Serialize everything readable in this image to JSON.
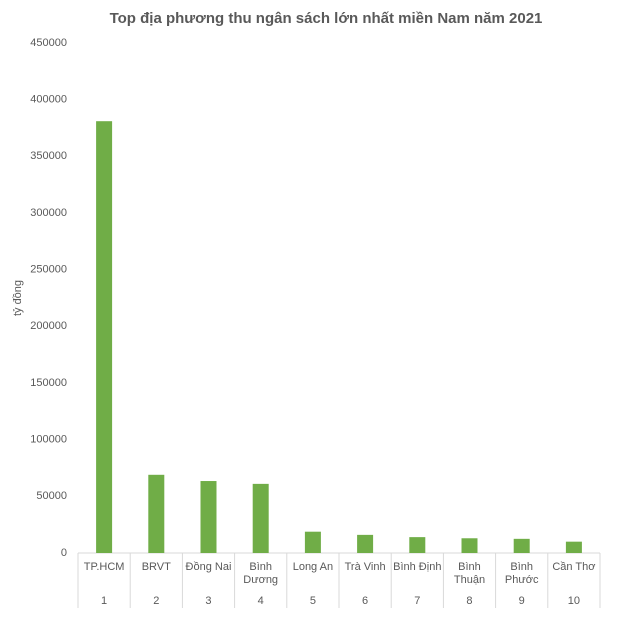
{
  "chart_data": {
    "type": "bar",
    "title": "Top địa phương thu ngân sách lớn nhất miền Nam năm 2021",
    "y_label": "tỷ đồng",
    "categories": [
      "TP.HCM",
      "BRVT",
      "Đồng Nai",
      "Bình Dương",
      "Long An",
      "Trà Vinh",
      "Bình Định",
      "Bình Thuận",
      "Bình Phước",
      "Cần Thơ"
    ],
    "category_groups": [
      "1",
      "2",
      "3",
      "4",
      "5",
      "6",
      "7",
      "8",
      "9",
      "10"
    ],
    "values": [
      381000,
      69000,
      63500,
      61000,
      18800,
      16000,
      14000,
      13000,
      12500,
      10000
    ],
    "color": "#70ad47",
    "ylim": [
      0,
      450000
    ],
    "yticks": [
      0,
      50000,
      100000,
      150000,
      200000,
      250000,
      300000,
      350000,
      400000,
      450000
    ],
    "grid": false
  }
}
